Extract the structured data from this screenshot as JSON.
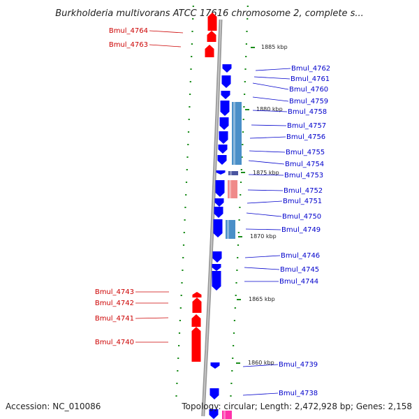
{
  "title": "Burkholderia multivorans ATCC 17616 chromosome 2, complete s...",
  "footer": {
    "accession": "Accession: NC_010086",
    "topology": "Topology: circular; Length: 2,472,928 bp; Genes: 2,158"
  },
  "colors": {
    "forward_gene": "#ff0000",
    "reverse_gene": "#0000ff",
    "label_forward": "#cc0000",
    "label_reverse": "#0000cc",
    "cog_blue": "#4a8fc8",
    "cog_pink": "#f08a8a",
    "tick": "#1a8c1a",
    "backbone": "#888888"
  },
  "kbp_ticks": [
    {
      "id": "1885",
      "label": "1885 kbp"
    },
    {
      "id": "1880",
      "label": "1880 kbp"
    },
    {
      "id": "1875",
      "label": "1875 kbp"
    },
    {
      "id": "1870",
      "label": "1870 kbp"
    },
    {
      "id": "1865",
      "label": "1865 kbp"
    },
    {
      "id": "1860",
      "label": "1860 kbp"
    }
  ],
  "left_labels": [
    {
      "id": "4764",
      "text": "Bmul_4764"
    },
    {
      "id": "4763",
      "text": "Bmul_4763"
    },
    {
      "id": "4743",
      "text": "Bmul_4743"
    },
    {
      "id": "4742",
      "text": "Bmul_4742"
    },
    {
      "id": "4741",
      "text": "Bmul_4741"
    },
    {
      "id": "4740",
      "text": "Bmul_4740"
    }
  ],
  "right_labels": [
    {
      "id": "4762",
      "text": "Bmul_4762"
    },
    {
      "id": "4761",
      "text": "Bmul_4761"
    },
    {
      "id": "4760",
      "text": "Bmul_4760"
    },
    {
      "id": "4759",
      "text": "Bmul_4759"
    },
    {
      "id": "4758",
      "text": "Bmul_4758"
    },
    {
      "id": "4757",
      "text": "Bmul_4757"
    },
    {
      "id": "4756",
      "text": "Bmul_4756"
    },
    {
      "id": "4755",
      "text": "Bmul_4755"
    },
    {
      "id": "4754",
      "text": "Bmul_4754"
    },
    {
      "id": "4753",
      "text": "Bmul_4753"
    },
    {
      "id": "4752",
      "text": "Bmul_4752"
    },
    {
      "id": "4751",
      "text": "Bmul_4751"
    },
    {
      "id": "4750",
      "text": "Bmul_4750"
    },
    {
      "id": "4749",
      "text": "Bmul_4749"
    },
    {
      "id": "4746",
      "text": "Bmul_4746"
    },
    {
      "id": "4745",
      "text": "Bmul_4745"
    },
    {
      "id": "4744",
      "text": "Bmul_4744"
    },
    {
      "id": "4739",
      "text": "Bmul_4739"
    },
    {
      "id": "4738",
      "text": "Bmul_4738"
    }
  ]
}
